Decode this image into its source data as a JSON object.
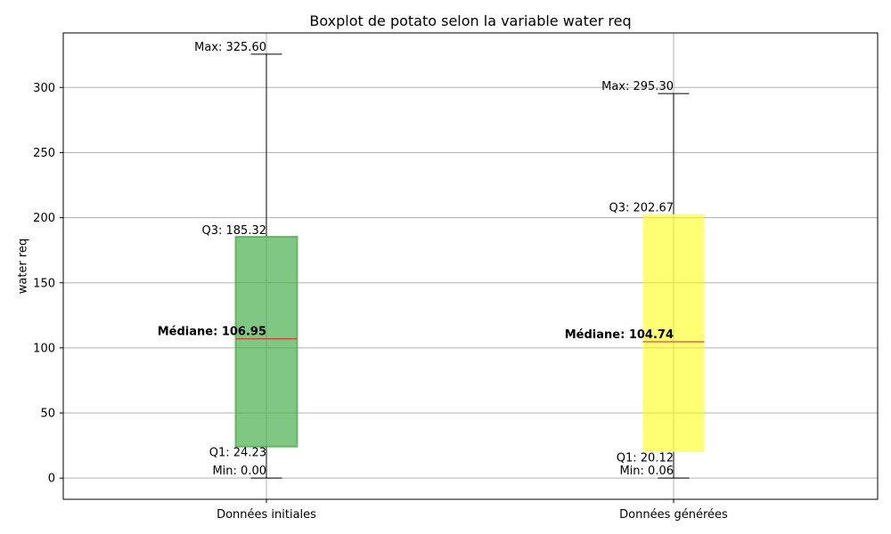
{
  "chart_data": {
    "type": "box",
    "title": "Boxplot de potato selon la variable water req",
    "xlabel": "",
    "ylabel": "water req",
    "ylim": [
      -16.28,
      341.88
    ],
    "yticks": [
      0,
      50,
      100,
      150,
      200,
      250,
      300
    ],
    "grid": true,
    "categories": [
      "Données initiales",
      "Données générées"
    ],
    "boxes": [
      {
        "category": "Données initiales",
        "min": 0.0,
        "q1": 24.23,
        "median": 106.95,
        "q3": 185.32,
        "max": 325.6,
        "color": "#4caf50",
        "labels": {
          "max": "Max: 325.60",
          "q3": "Q3: 185.32",
          "median": "Médiane: 106.95",
          "q1": "Q1: 24.23",
          "min": "Min: 0.00"
        }
      },
      {
        "category": "Données générées",
        "min": 0.06,
        "q1": 20.12,
        "median": 104.74,
        "q3": 202.67,
        "max": 295.3,
        "color": "#ffff00",
        "labels": {
          "max": "Max: 295.30",
          "q3": "Q3: 202.67",
          "median": "Médiane: 104.74",
          "q1": "Q1: 20.12",
          "min": "Min: 0.06"
        }
      }
    ],
    "median_color": "#e41a1c"
  }
}
